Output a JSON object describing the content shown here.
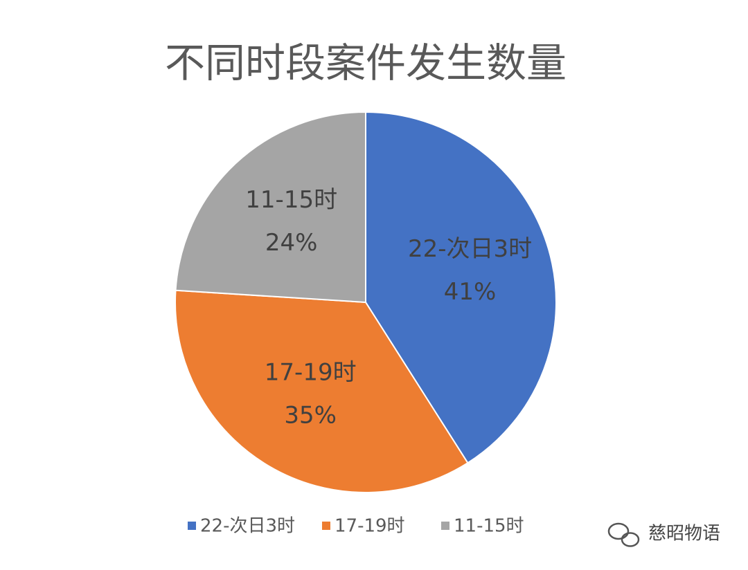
{
  "chart_data": {
    "type": "pie",
    "title": "不同时段案件发生数量",
    "categories": [
      "22-次日3时",
      "17-19时",
      "11-15时"
    ],
    "values": [
      41,
      35,
      24
    ],
    "value_labels": [
      "41%",
      "35%",
      "24%"
    ],
    "colors": [
      "#4472c4",
      "#ed7d31",
      "#a5a5a5"
    ],
    "legend": "bottom",
    "watermark": "慈昭物语"
  }
}
